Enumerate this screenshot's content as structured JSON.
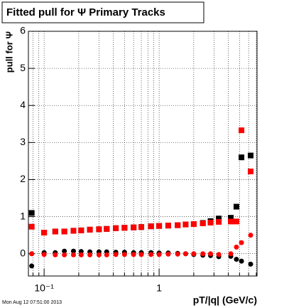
{
  "chart_data": {
    "type": "scatter",
    "title": "Fitted pull for  Ψ   Primary Tracks",
    "ylabel": "pull for Ψ",
    "xlabel": "pT/|q| (GeV/c)",
    "timestamp": "Mon Aug 12 07:51:00 2013",
    "xlog": true,
    "grid": true,
    "xlim": [
      0.073,
      7.1
    ],
    "ylim": [
      -0.6,
      6
    ],
    "xticks": [
      {
        "value": 0.1,
        "label": "10⁻¹"
      },
      1
    ],
    "xminorticks": [
      0.08,
      0.09,
      0.2,
      0.3,
      0.4,
      0.5,
      0.6,
      0.7,
      0.8,
      0.9,
      2,
      3,
      4,
      5,
      6,
      7
    ],
    "yticks": [
      0,
      1,
      2,
      3,
      4,
      5,
      6
    ],
    "x": [
      0.078,
      0.1,
      0.125,
      0.15,
      0.18,
      0.21,
      0.25,
      0.3,
      0.35,
      0.42,
      0.5,
      0.6,
      0.7,
      0.85,
      1.0,
      1.2,
      1.45,
      1.7,
      2.0,
      2.4,
      2.8,
      3.3,
      4.2,
      4.7,
      5.2,
      6.25
    ],
    "series": [
      {
        "color": "#000000",
        "marker": "square",
        "values": [
          1.1,
          0.57,
          0.6,
          0.6,
          0.62,
          0.63,
          0.65,
          0.66,
          0.67,
          0.69,
          0.7,
          0.71,
          0.72,
          0.74,
          0.75,
          0.76,
          0.77,
          0.79,
          0.8,
          0.83,
          0.88,
          0.95,
          0.97,
          1.27,
          2.6,
          2.65
        ]
      },
      {
        "color": "#000000",
        "marker": "circle",
        "values": [
          -0.33,
          0.03,
          0.03,
          0.07,
          0.07,
          0.06,
          0.05,
          0.05,
          0.05,
          0.04,
          0.04,
          0.03,
          0.03,
          0.03,
          0.02,
          0.02,
          0.01,
          0.0,
          -0.02,
          -0.04,
          -0.05,
          -0.08,
          -0.07,
          -0.15,
          -0.2,
          -0.28
        ]
      },
      {
        "color": "#ff0000",
        "marker": "square",
        "values": [
          0.73,
          0.57,
          0.6,
          0.6,
          0.62,
          0.63,
          0.65,
          0.66,
          0.67,
          0.69,
          0.7,
          0.71,
          0.72,
          0.74,
          0.75,
          0.76,
          0.77,
          0.79,
          0.8,
          0.82,
          0.84,
          0.86,
          0.87,
          0.87,
          3.33,
          2.22
        ]
      },
      {
        "color": "#ff0000",
        "marker": "circle",
        "values": [
          0.0,
          -0.02,
          -0.03,
          -0.03,
          -0.03,
          -0.03,
          -0.03,
          -0.03,
          -0.03,
          -0.02,
          -0.02,
          -0.02,
          -0.02,
          -0.02,
          -0.02,
          -0.01,
          -0.01,
          0.0,
          0.0,
          0.0,
          0.0,
          -0.02,
          0.0,
          0.18,
          0.3,
          0.5
        ]
      }
    ]
  }
}
